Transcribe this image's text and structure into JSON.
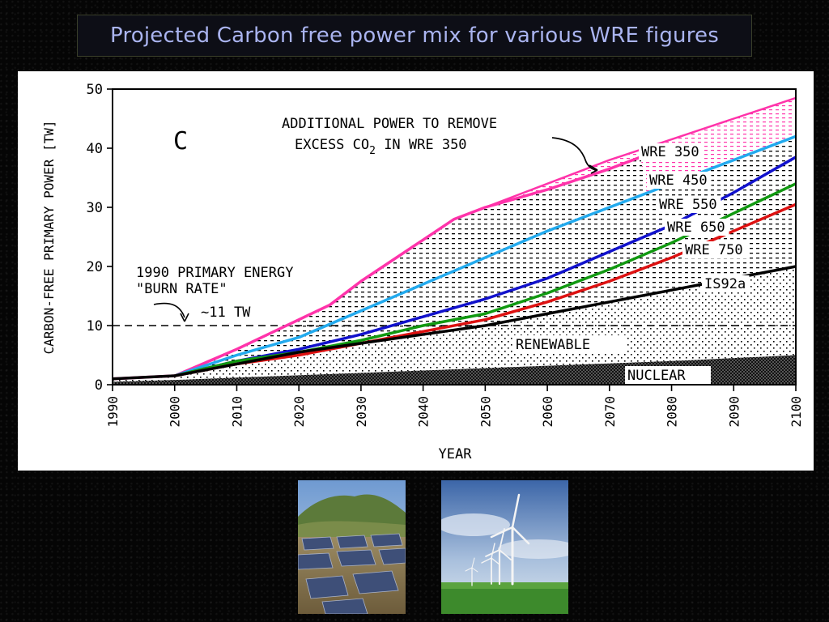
{
  "slide": {
    "title": "Projected Carbon free power mix for various WRE figures"
  },
  "chart_data": {
    "type": "area",
    "panel_label": "C",
    "xlabel": "YEAR",
    "ylabel": "CARBON-FREE PRIMARY POWER [TW]",
    "xlim": [
      1990,
      2100
    ],
    "ylim": [
      0,
      50
    ],
    "x_ticks": [
      "1990",
      "2000",
      "2010",
      "2020",
      "2030",
      "2040",
      "2050",
      "2060",
      "2070",
      "2080",
      "2090",
      "2100"
    ],
    "y_ticks": [
      "0",
      "10",
      "20",
      "30",
      "40",
      "50"
    ],
    "grid": false,
    "series": [
      {
        "name": "WRE 350",
        "color": "#ff33aa",
        "x": [
          1990,
          2000,
          2010,
          2020,
          2025,
          2030,
          2040,
          2045,
          2050,
          2060,
          2070,
          2075
        ],
        "values": [
          1,
          1.5,
          6,
          11,
          13.5,
          17.5,
          24.5,
          28,
          30,
          33,
          36.5,
          38.5
        ]
      },
      {
        "name": "WRE 450",
        "color": "#22aaee",
        "x": [
          2000,
          2010,
          2020,
          2030,
          2040,
          2050,
          2060,
          2070,
          2080,
          2090,
          2100
        ],
        "values": [
          1.5,
          5,
          8,
          12.5,
          17,
          21.5,
          26,
          30,
          34,
          38,
          42
        ]
      },
      {
        "name": "WRE 550",
        "color": "#1111cc",
        "x": [
          2000,
          2010,
          2020,
          2030,
          2040,
          2050,
          2060,
          2070,
          2080,
          2090,
          2100
        ],
        "values": [
          1.5,
          4,
          6,
          8.5,
          11.5,
          14.5,
          18,
          22.5,
          27,
          32.5,
          38.5
        ]
      },
      {
        "name": "WRE 650",
        "color": "#119911",
        "x": [
          2000,
          2010,
          2020,
          2030,
          2040,
          2050,
          2060,
          2070,
          2080,
          2090,
          2100
        ],
        "values": [
          1.5,
          4,
          5.5,
          7.5,
          10,
          12,
          15.5,
          19.5,
          24,
          29,
          34
        ]
      },
      {
        "name": "WRE 750",
        "color": "#dd1111",
        "x": [
          2000,
          2010,
          2020,
          2030,
          2040,
          2050,
          2060,
          2070,
          2080,
          2090,
          2100
        ],
        "values": [
          1.5,
          3.5,
          5,
          7,
          9,
          11,
          14,
          17.5,
          21.5,
          26,
          30.5
        ]
      },
      {
        "name": "IS92a",
        "color": "#000000",
        "x": [
          1990,
          2000,
          2010,
          2020,
          2030,
          2040,
          2050,
          2060,
          2070,
          2080,
          2090,
          2100
        ],
        "values": [
          1,
          1.5,
          3.5,
          5.5,
          7,
          8.5,
          10,
          12,
          14,
          16,
          18,
          20
        ]
      }
    ],
    "additional_power_upper": {
      "x": [
        2045,
        2050,
        2060,
        2070,
        2080,
        2090,
        2100
      ],
      "values": [
        28,
        30,
        34,
        38,
        41.5,
        45,
        48.5
      ]
    },
    "nuclear": {
      "x": [
        1990,
        2000,
        2010,
        2020,
        2030,
        2040,
        2050,
        2060,
        2070,
        2080,
        2090,
        2100
      ],
      "values": [
        0.5,
        0.8,
        1.2,
        1.6,
        2.0,
        2.4,
        2.8,
        3.2,
        3.6,
        4.0,
        4.5,
        5.0
      ]
    },
    "reference_line": {
      "y": 10
    },
    "annotations": {
      "additional_line1": "ADDITIONAL POWER TO REMOVE",
      "additional_line2_prefix": "EXCESS CO",
      "additional_line2_sub": "2",
      "additional_line2_suffix": " IN WRE 350",
      "burn_rate_line1": "1990 PRIMARY ENERGY",
      "burn_rate_line2": "\"BURN RATE\"",
      "burn_rate_value": "~11 TW",
      "renewable": "RENEWABLE",
      "nuclear": "NUCLEAR"
    }
  },
  "photos": {
    "solar_icon": "solar-panel-field-photo",
    "wind_icon": "wind-turbines-photo"
  }
}
